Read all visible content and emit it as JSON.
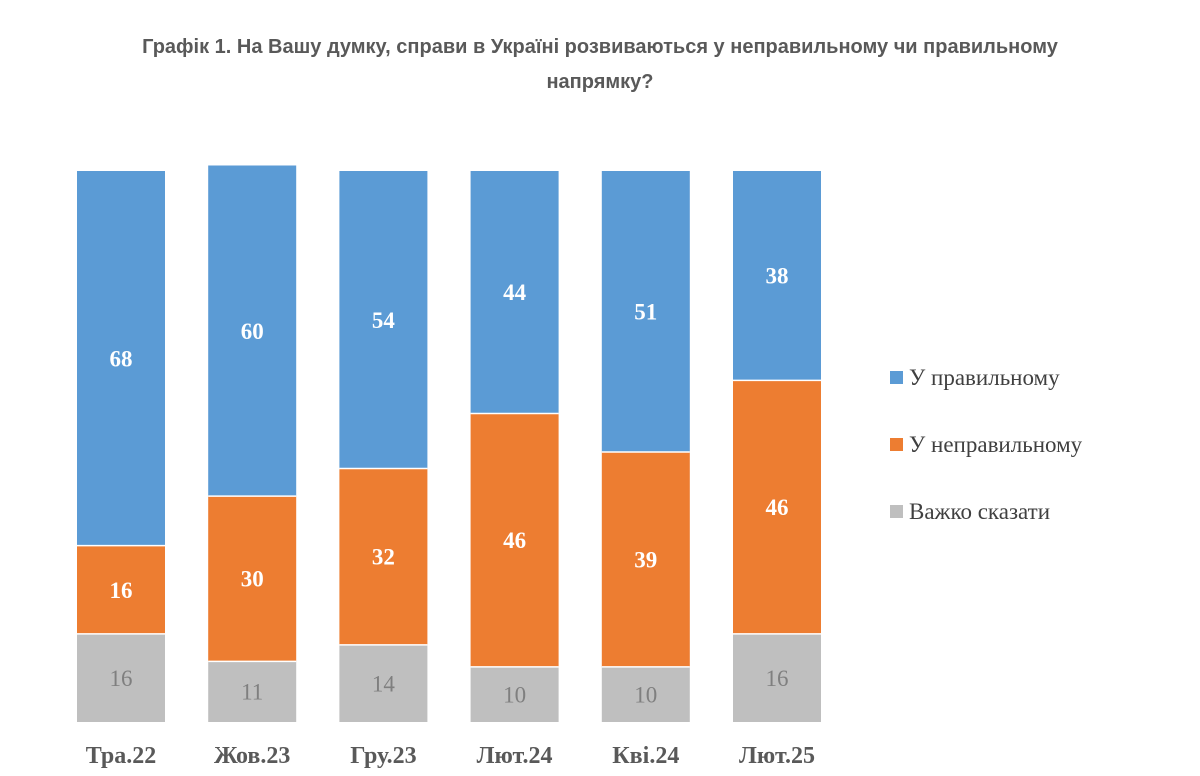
{
  "chart_data": {
    "type": "bar",
    "stacked": true,
    "title": "Графік 1. На Вашу думку, справи в Україні розвиваються у неправильному чи правильному напрямку?",
    "categories": [
      "Тра.22",
      "Жов.23",
      "Гру.23",
      "Лют.24",
      "Кві.24",
      "Лют.25"
    ],
    "series": [
      {
        "name": "Важко сказати",
        "values": [
          16,
          11,
          14,
          10,
          10,
          16
        ],
        "color": "#bfbfbf",
        "label_style": "gray"
      },
      {
        "name": "У неправильному",
        "values": [
          16,
          30,
          32,
          46,
          39,
          46
        ],
        "color": "#ed7d31",
        "label_style": "white"
      },
      {
        "name": "У правильному",
        "values": [
          68,
          60,
          54,
          44,
          51,
          38
        ],
        "color": "#5b9bd5",
        "label_style": "white"
      }
    ],
    "legend_order": [
      "У правильному",
      "У неправильному",
      "Важко сказати"
    ],
    "ylim": [
      0,
      100
    ],
    "xlabel": "",
    "ylabel": "",
    "grid": false,
    "legend_position": "right"
  }
}
